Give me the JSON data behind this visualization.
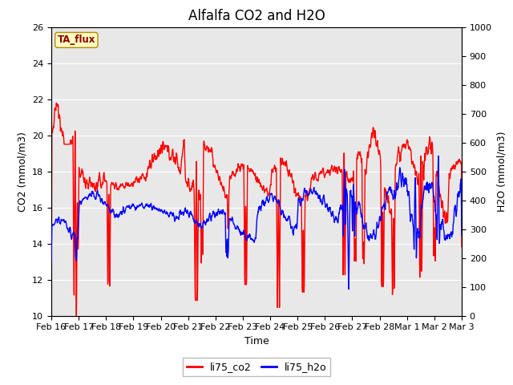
{
  "title": "Alfalfa CO2 and H2O",
  "xlabel": "Time",
  "ylabel_left": "CO2 (mmol/m3)",
  "ylabel_right": "H2O (mmol/m3)",
  "ylim_left": [
    10,
    26
  ],
  "ylim_right": [
    0,
    1000
  ],
  "yticks_left": [
    10,
    12,
    14,
    16,
    18,
    20,
    22,
    24,
    26
  ],
  "yticks_right": [
    0,
    100,
    200,
    300,
    400,
    500,
    600,
    700,
    800,
    900,
    1000
  ],
  "legend_labels": [
    "li75_co2",
    "li75_h2o"
  ],
  "legend_colors": [
    "red",
    "blue"
  ],
  "annotation_text": "TA_flux",
  "annotation_color": "#8B0000",
  "annotation_bg": "#FFFFC0",
  "bg_color": "#E8E8E8",
  "line_color_co2": "red",
  "line_color_h2o": "blue",
  "line_width": 1.0,
  "title_fontsize": 12,
  "axis_label_fontsize": 9,
  "tick_label_fontsize": 8,
  "x_tick_labels": [
    "Feb 16",
    "Feb 17",
    "Feb 18",
    "Feb 19",
    "Feb 20",
    "Feb 21",
    "Feb 22",
    "Feb 23",
    "Feb 24",
    "Feb 25",
    "Feb 26",
    "Feb 27",
    "Feb 28",
    "Mar 1",
    "Mar 2",
    "Mar 3"
  ]
}
